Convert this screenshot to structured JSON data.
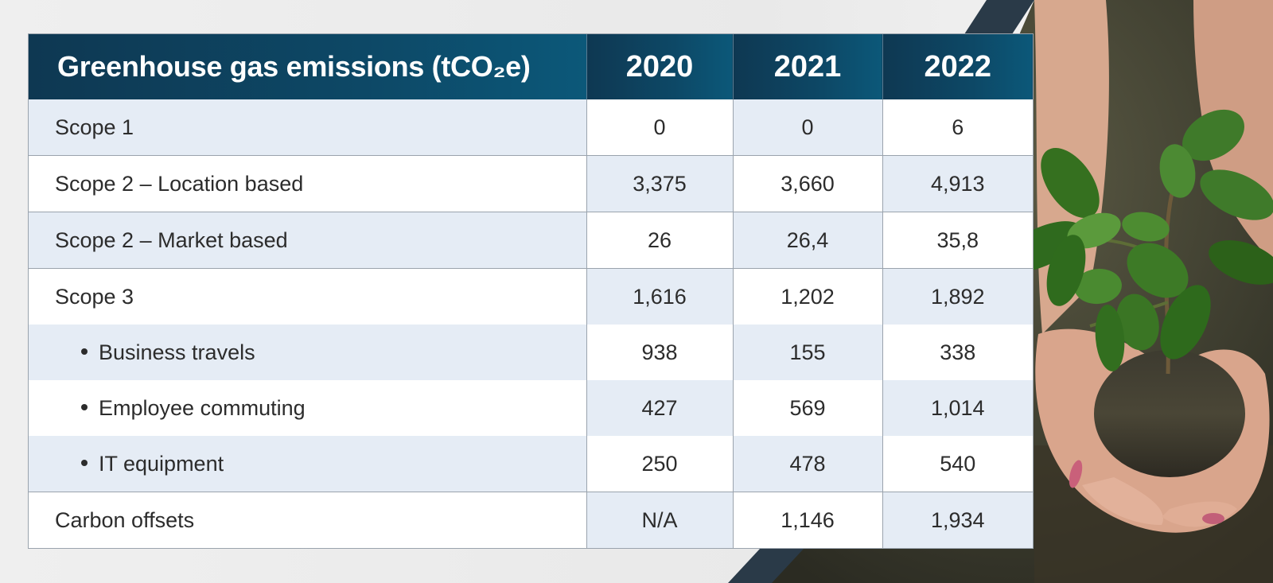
{
  "table": {
    "header": [
      "Greenhouse gas emissions (tCO₂e)",
      "2020",
      "2021",
      "2022"
    ],
    "rows": [
      {
        "label": "Scope 1",
        "indent": false,
        "values": [
          "0",
          "0",
          "6"
        ]
      },
      {
        "label": "Scope 2 – Location based",
        "indent": false,
        "values": [
          "3,375",
          "3,660",
          "4,913"
        ]
      },
      {
        "label": "Scope 2 – Market based",
        "indent": false,
        "values": [
          "26",
          "26,4",
          "35,8"
        ]
      },
      {
        "label": "Scope 3",
        "indent": false,
        "values": [
          "1,616",
          "1,202",
          "1,892"
        ]
      },
      {
        "label": "Business travels",
        "indent": true,
        "values": [
          "938",
          "155",
          "338"
        ]
      },
      {
        "label": "Employee commuting",
        "indent": true,
        "values": [
          "427",
          "569",
          "1,014"
        ]
      },
      {
        "label": "IT equipment",
        "indent": true,
        "values": [
          "250",
          "478",
          "540"
        ]
      },
      {
        "label": "Carbon offsets",
        "indent": false,
        "values": [
          "N/A",
          "1,146",
          "1,934"
        ]
      }
    ]
  },
  "image": {
    "subject": "hands-holding-seedling-photo"
  },
  "colors": {
    "header_bg": "#0d4866",
    "shade": "#e5ecf5",
    "accent_band": "#2a3a48"
  }
}
